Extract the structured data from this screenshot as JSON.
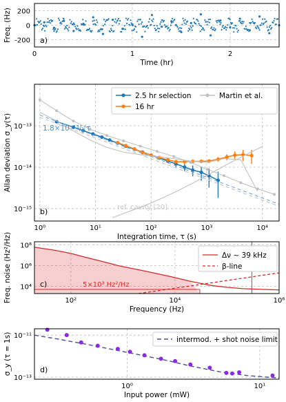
{
  "chart_data": [
    {
      "panel": "a)",
      "type": "scatter",
      "xlabel": "Time (hr)",
      "ylabel": "Freq. (Hz)",
      "xlim": [
        0,
        2.5
      ],
      "ylim": [
        -300,
        300
      ],
      "xticks": [
        0,
        1,
        2
      ],
      "yticks": [
        -200,
        0,
        200
      ],
      "grid": true,
      "color": "#1f77b4",
      "series": [
        {
          "x": [
            0.0,
            0.1,
            0.2,
            0.3,
            0.4,
            0.5,
            0.6,
            0.7,
            0.8,
            0.9,
            1.0,
            1.1,
            1.2,
            1.3,
            1.4,
            1.5,
            1.6,
            1.7,
            1.8,
            1.9,
            2.0,
            2.1,
            2.2,
            2.3,
            2.4,
            2.5
          ],
          "values": [
            0,
            40,
            -35,
            60,
            -80,
            20,
            110,
            -120,
            75,
            -50,
            10,
            -160,
            140,
            -20,
            55,
            -95,
            30,
            150,
            -140,
            65,
            -30,
            90,
            -70,
            120,
            -110,
            0
          ]
        }
      ]
    },
    {
      "panel": "b)",
      "type": "line",
      "xlabel": "Integration time, τ (s)",
      "ylabel": "Allan deviation σ_y(τ)",
      "xscale": "log",
      "yscale": "log",
      "xlim": [
        0.8,
        20000
      ],
      "ylim": [
        5e-16,
        1e-12
      ],
      "xtick_labels": [
        "10⁰",
        "10¹",
        "10²",
        "10³",
        "10⁴"
      ],
      "ytick_labels": [
        "10⁻¹⁵",
        "10⁻¹⁴",
        "10⁻¹³"
      ],
      "legend": "top-right",
      "grid": true,
      "annotations": [
        "1.8×10⁻¹³/√τ",
        "ref. cavity [20]"
      ],
      "series": [
        {
          "name": "2.5 hr selection",
          "color": "#1f77b4",
          "x": [
            2,
            4,
            6,
            9,
            13,
            18,
            25,
            35,
            50,
            70,
            100,
            140,
            200,
            280,
            400,
            560,
            800,
            1100,
            1600
          ],
          "values": [
            1.25e-13,
            9.2e-14,
            7.6e-14,
            6.3e-14,
            5.3e-14,
            4.5e-14,
            3.8e-14,
            3.2e-14,
            2.7e-14,
            2.3e-14,
            1.95e-14,
            1.65e-14,
            1.4e-14,
            1.2e-14,
            1e-14,
            8.5e-15,
            7.5e-15,
            6.2e-15,
            4.8e-15
          ],
          "err": [
            5e-15,
            4e-15,
            3e-15,
            3e-15,
            2.5e-15,
            2e-15,
            2e-15,
            1.8e-15,
            1.5e-15,
            1.5e-15,
            1.5e-15,
            1.5e-15,
            1.5e-15,
            2e-15,
            2e-15,
            2.5e-15,
            2.8e-15,
            3e-15,
            3e-15
          ]
        },
        {
          "name": "16 hr",
          "color": "#ff7f0e",
          "x": [
            25,
            35,
            50,
            70,
            100,
            140,
            200,
            280,
            400,
            560,
            800,
            1100,
            1600,
            2300,
            3200,
            4500,
            6400
          ],
          "values": [
            3.9e-14,
            3.3e-14,
            2.75e-14,
            2.25e-14,
            1.95e-14,
            1.7e-14,
            1.5e-14,
            1.35e-14,
            1.35e-14,
            1.38e-14,
            1.38e-14,
            1.4e-14,
            1.55e-14,
            1.75e-14,
            1.95e-14,
            2e-14,
            1.9e-14
          ],
          "err": [
            1e-15,
            1e-15,
            1e-15,
            1e-15,
            1e-15,
            1e-15,
            1e-15,
            1e-15,
            1e-15,
            1e-15,
            1.2e-15,
            1.5e-15,
            2e-15,
            3e-15,
            4.5e-15,
            6e-15,
            7e-15
          ]
        },
        {
          "name": "Martin et al.",
          "color": "#c0c0c0",
          "x": [
            1,
            2,
            4,
            8,
            16,
            32,
            64,
            128,
            256,
            512,
            1024,
            2048,
            4096,
            8192,
            16384
          ],
          "values": [
            4.2e-13,
            2.3e-13,
            1.3e-13,
            8.2e-14,
            5.8e-14,
            4.3e-14,
            3.2e-14,
            2.4e-14,
            1.8e-14,
            1.3e-14,
            8.8e-15,
            6.2e-15,
            4.2e-15,
            3e-15,
            2.2e-15
          ]
        },
        {
          "color": "#c0c0c0",
          "x": [
            1,
            2,
            4,
            8,
            16,
            32,
            64,
            128,
            256,
            512,
            1024,
            2048,
            4096,
            8192
          ],
          "values": [
            2.1e-13,
            1.3e-13,
            7.5e-14,
            4.5e-14,
            3e-14,
            2.3e-14,
            2e-14,
            1.8e-14,
            1.6e-14,
            1.4e-14,
            1.3e-14,
            1.6e-14,
            1.5e-14,
            2.6e-15
          ]
        },
        {
          "color": "#c0c0c0",
          "x": [
            20,
            40,
            80,
            160,
            320,
            640,
            1280,
            2560,
            5120,
            10240
          ],
          "values": [
            6e-16,
            8.5e-16,
            1.2e-15,
            1.8e-15,
            2.8e-15,
            4.5e-15,
            7.5e-15,
            1.25e-14,
            2e-14,
            3.2e-14
          ]
        },
        {
          "color": "#6fa8dc",
          "dashed": true,
          "x": [
            1,
            20000
          ],
          "values": [
            1.8e-13,
            1.27e-15
          ]
        },
        {
          "color": "#c0c0c0",
          "dashed": true,
          "x": [
            1,
            20000
          ],
          "values": [
            1.6e-13,
            1.13e-15
          ]
        }
      ]
    },
    {
      "panel": "c)",
      "type": "line",
      "xlabel": "Frequency (Hz)",
      "ylabel": "Freq. noise (Hz²/Hz)",
      "xscale": "log",
      "yscale": "log",
      "xlim": [
        20,
        1000000
      ],
      "ylim": [
        2000,
        200000000
      ],
      "xtick_labels": [
        "10²",
        "10⁴",
        "10⁶"
      ],
      "ytick_labels": [
        "10⁴",
        "10⁶",
        "10⁸"
      ],
      "legend": "top-right",
      "annotations": [
        "5×10³ Hz²/Hz"
      ],
      "series": [
        {
          "name": "Δν ~ 39 kHz",
          "color": "#d62728",
          "x": [
            20,
            50,
            100,
            200,
            400,
            600,
            800,
            1000,
            2000,
            5000,
            10000,
            20000,
            50000,
            100000,
            200000,
            500000,
            1000000
          ],
          "values": [
            60000000,
            30000000,
            15000000,
            6000000,
            2500000,
            1500000,
            1000000,
            800000,
            400000,
            150000,
            70000,
            30000,
            12000,
            8000,
            6000,
            5000,
            4500
          ]
        },
        {
          "name": "β-line",
          "color": "#d62728",
          "dashed": true,
          "x": [
            2000,
            1000000
          ],
          "values": [
            2000,
            200000
          ]
        }
      ]
    },
    {
      "panel": "d)",
      "type": "scatter",
      "xlabel": "Input power (mW)",
      "ylabel": "σ_y (τ = 1s)",
      "xscale": "log",
      "yscale": "log",
      "xlim": [
        0.2,
        14
      ],
      "ylim": [
        8e-14,
        2e-11
      ],
      "xtick_labels": [
        "10⁰",
        "10¹"
      ],
      "ytick_labels": [
        "10⁻¹³",
        "10⁻¹¹"
      ],
      "legend": "top-right",
      "series": [
        {
          "color": "#8a2be2",
          "x": [
            0.25,
            0.35,
            0.45,
            0.6,
            0.85,
            1.05,
            1.35,
            1.8,
            2.3,
            3.0,
            4.2,
            5.6,
            6.2,
            7.0,
            12.5
          ],
          "values": [
            1.8e-11,
            1e-11,
            4.5e-12,
            3.1e-12,
            2.2e-12,
            1.6e-12,
            1.1e-12,
            7.5e-13,
            5.8e-13,
            4e-13,
            2.8e-13,
            1.6e-13,
            1.5e-13,
            1.7e-13,
            1.2e-13
          ]
        },
        {
          "name": "intermod. + shot noise limit",
          "color": "#4b4ba0",
          "dashed": true,
          "x": [
            0.2,
            0.3,
            0.5,
            0.8,
            1.2,
            2.0,
            3.0,
            5.0,
            8.0,
            14.0
          ],
          "values": [
            1e-11,
            6.5e-12,
            3.6e-12,
            2e-12,
            1.2e-12,
            6.2e-13,
            3.4e-13,
            1.8e-13,
            1.2e-13,
            9e-14
          ]
        }
      ]
    }
  ]
}
